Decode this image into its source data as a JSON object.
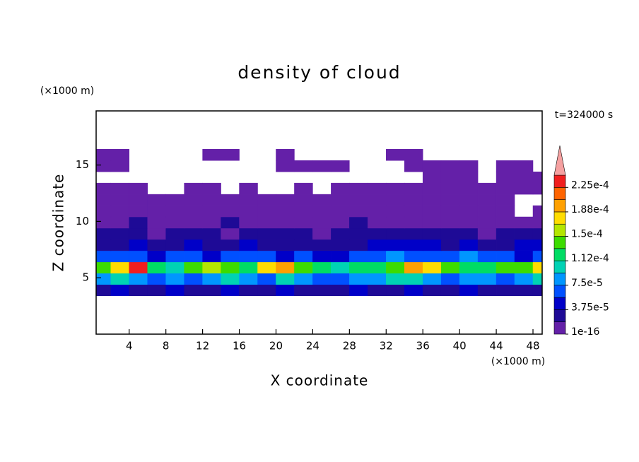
{
  "chart_data": {
    "type": "contour",
    "title": "density of cloud",
    "x_label": "X coordinate",
    "y_label": "Z coordinate",
    "x_unit": "(×1000 m)",
    "y_unit": "(×1000 m)",
    "time_label": "t=324000 s",
    "xlim": [
      0.4,
      49
    ],
    "ylim": [
      0,
      19.8
    ],
    "xticks": [
      4,
      8,
      12,
      16,
      20,
      24,
      28,
      32,
      36,
      40,
      44,
      48
    ],
    "yticks": [
      5,
      10,
      15
    ],
    "x": [
      1,
      3,
      5,
      7,
      9,
      11,
      13,
      15,
      17,
      19,
      21,
      23,
      25,
      27,
      29,
      31,
      33,
      35,
      37,
      39,
      41,
      43,
      45,
      47,
      49
    ],
    "z": [
      3.9,
      4.9,
      5.9,
      6.9,
      7.9,
      8.9,
      9.9,
      10.9,
      11.9,
      12.9,
      13.9,
      14.9,
      15.9
    ],
    "values": [
      [
        3e-05,
        4e-05,
        3e-05,
        2e-05,
        4e-05,
        3e-05,
        3e-05,
        4e-05,
        2e-05,
        3e-05,
        4e-05,
        3e-05,
        2e-05,
        3e-05,
        4e-05,
        3e-05,
        3e-05,
        4e-05,
        2e-05,
        3e-05,
        4e-05,
        3e-05,
        3e-05,
        2e-05,
        3e-05
      ],
      [
        9e-05,
        0.00011,
        8e-05,
        7e-05,
        9e-05,
        6e-05,
        8e-05,
        0.0001,
        9e-05,
        7e-05,
        0.00011,
        8e-05,
        6e-05,
        7e-05,
        9e-05,
        8e-05,
        0.0001,
        0.00011,
        9e-05,
        7e-05,
        8e-05,
        9e-05,
        7e-05,
        8e-05,
        0.0001
      ],
      [
        0.00015,
        0.00017,
        0.00023,
        0.00013,
        0.00011,
        0.00015,
        0.00016,
        0.00014,
        0.00013,
        0.00017,
        0.0002,
        0.00015,
        0.00012,
        0.00011,
        0.00013,
        0.00012,
        0.00014,
        0.00019,
        0.00017,
        0.00014,
        0.00012,
        0.00013,
        0.00015,
        0.00014,
        0.00017
      ],
      [
        7e-05,
        6e-05,
        7e-05,
        5e-05,
        6e-05,
        7e-05,
        5e-05,
        6e-05,
        7e-05,
        6e-05,
        5e-05,
        6e-05,
        5e-05,
        4e-05,
        6e-05,
        7e-05,
        8e-05,
        7e-05,
        6e-05,
        7e-05,
        8e-05,
        7e-05,
        6e-05,
        5e-05,
        6e-05
      ],
      [
        3e-05,
        3e-05,
        4e-05,
        3e-05,
        2e-05,
        4e-05,
        3e-05,
        3e-05,
        4e-05,
        3e-05,
        2e-05,
        3e-05,
        3e-05,
        2e-05,
        3e-05,
        4e-05,
        5e-05,
        4e-05,
        4e-05,
        3e-05,
        4e-05,
        3e-05,
        3e-05,
        4e-05,
        4e-05
      ],
      [
        2e-05,
        2.5e-05,
        2e-05,
        1.5e-05,
        2e-05,
        2.5e-05,
        2e-05,
        1.5e-05,
        2e-05,
        3e-05,
        2e-05,
        2e-05,
        1.5e-05,
        2e-05,
        2e-05,
        2.5e-05,
        2e-05,
        3e-05,
        2e-05,
        2.5e-05,
        2e-05,
        1.5e-05,
        2e-05,
        2e-05,
        2.5e-05
      ],
      [
        1e-05,
        1e-05,
        2e-05,
        1e-05,
        1e-05,
        1e-05,
        1e-05,
        2e-05,
        1e-05,
        1e-05,
        1e-05,
        1e-05,
        1e-05,
        1e-05,
        2e-05,
        1e-05,
        1e-05,
        1e-05,
        1e-05,
        1e-05,
        1e-05,
        1e-05,
        1e-05,
        1e-05,
        1e-05
      ],
      [
        1e-05,
        1e-05,
        1e-05,
        1e-05,
        1e-05,
        1e-05,
        1e-05,
        1e-05,
        1e-05,
        1e-05,
        1e-05,
        1e-05,
        1e-05,
        1e-05,
        1e-05,
        1e-05,
        1e-05,
        1e-05,
        1e-05,
        1e-05,
        1e-05,
        1e-05,
        1e-05,
        0,
        1e-05
      ],
      [
        1e-05,
        1e-05,
        1e-05,
        1e-05,
        1e-05,
        1e-05,
        1e-05,
        1e-05,
        1e-05,
        1e-05,
        1e-05,
        1e-05,
        1e-05,
        1e-05,
        1e-05,
        1e-05,
        1e-05,
        1e-05,
        1e-05,
        1e-05,
        1e-05,
        1e-05,
        1e-05,
        0,
        0
      ],
      [
        1e-05,
        1e-05,
        1e-05,
        0,
        0,
        1e-05,
        1e-05,
        0,
        1e-05,
        0,
        0,
        1e-05,
        0,
        1e-05,
        1e-05,
        1e-05,
        1e-05,
        1e-05,
        1e-05,
        1e-05,
        1e-05,
        1e-05,
        1e-05,
        1e-05,
        1e-05
      ],
      [
        0,
        0,
        0,
        0,
        0,
        0,
        0,
        0,
        0,
        0,
        0,
        0,
        0,
        0,
        0,
        0,
        0,
        0,
        1e-05,
        1e-05,
        1e-05,
        0,
        1e-05,
        1e-05,
        1e-05
      ],
      [
        1e-05,
        1e-05,
        0,
        0,
        0,
        0,
        0,
        0,
        0,
        0,
        1e-05,
        1e-05,
        1e-05,
        1e-05,
        0,
        0,
        0,
        1e-05,
        1e-05,
        1e-05,
        1e-05,
        0,
        1e-05,
        1e-05,
        0
      ],
      [
        1e-05,
        1e-05,
        0,
        0,
        0,
        0,
        1e-05,
        1e-05,
        0,
        0,
        1e-05,
        0,
        0,
        0,
        0,
        0,
        1e-05,
        1e-05,
        0,
        0,
        0,
        0,
        0,
        0,
        0
      ]
    ],
    "colorbar": {
      "clim": [
        1e-16,
        0.00024375
      ],
      "colors": [
        "#6420a8",
        "#1e0a96",
        "#0000c8",
        "#0050ff",
        "#0096ff",
        "#00d2b4",
        "#00dc64",
        "#3cdc00",
        "#b4e600",
        "#ffdc00",
        "#ffa000",
        "#ff6400",
        "#f01e1e"
      ],
      "over_color": "#f5a0a0",
      "ticks": [
        {
          "value": 1e-16,
          "label": "1e-16"
        },
        {
          "value": 3.75e-05,
          "label": "3.75e-5"
        },
        {
          "value": 7.5e-05,
          "label": "7.5e-5"
        },
        {
          "value": 0.0001125,
          "label": "1.12e-4"
        },
        {
          "value": 0.00015,
          "label": "1.5e-4"
        },
        {
          "value": 0.0001875,
          "label": "1.88e-4"
        },
        {
          "value": 0.000225,
          "label": "2.25e-4"
        }
      ]
    }
  }
}
